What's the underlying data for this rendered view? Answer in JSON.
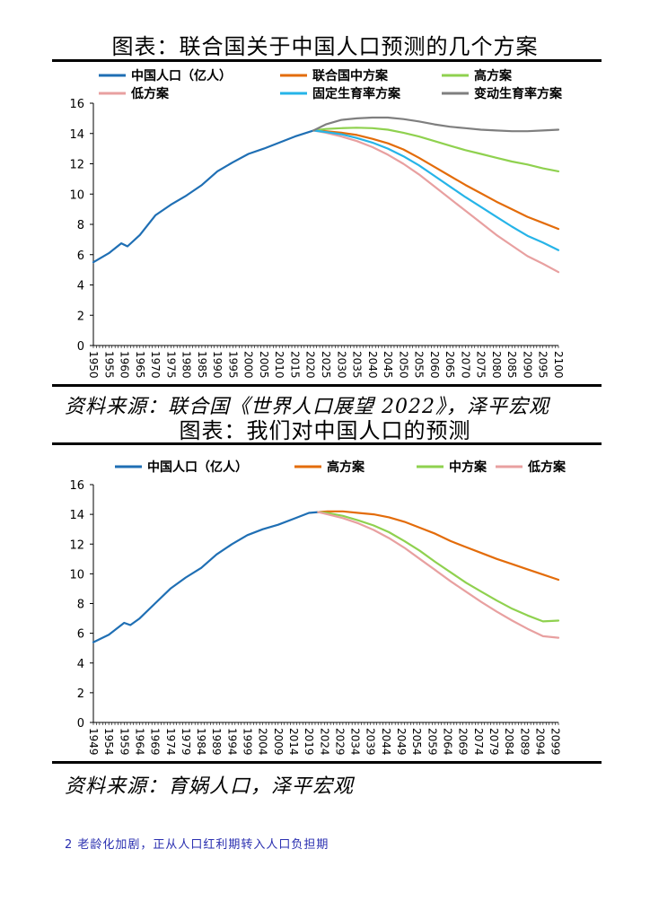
{
  "chart_data": [
    {
      "type": "line",
      "title": "图表：联合国关于中国人口预测的几个方案",
      "source": "资料来源：联合国《世界人口展望 2022》，泽平宏观",
      "ylim": [
        0,
        16
      ],
      "yticks": [
        0,
        2,
        4,
        6,
        8,
        10,
        12,
        14,
        16
      ],
      "x_range": [
        1950,
        2100
      ],
      "x_tick_labels": [
        "1950",
        "1955",
        "1960",
        "1965",
        "1970",
        "1975",
        "1980",
        "1985",
        "1990",
        "1995",
        "2000",
        "2005",
        "2010",
        "2015",
        "2020",
        "2025",
        "2030",
        "2035",
        "2040",
        "2045",
        "2050",
        "2055",
        "2060",
        "2065",
        "2070",
        "2075",
        "2080",
        "2085",
        "2090",
        "2095",
        "2100"
      ],
      "series": [
        {
          "name": "中国人口（亿人）",
          "color": "#1f6fb4",
          "x": [
            1950,
            1955,
            1959,
            1961,
            1965,
            1970,
            1975,
            1980,
            1985,
            1990,
            1995,
            2000,
            2005,
            2010,
            2015,
            2021
          ],
          "y": [
            5.5,
            6.1,
            6.75,
            6.55,
            7.3,
            8.6,
            9.3,
            9.9,
            10.6,
            11.5,
            12.1,
            12.65,
            13.0,
            13.4,
            13.8,
            14.2
          ]
        },
        {
          "name": "联合国中方案",
          "color": "#e36c0a",
          "x": [
            2021,
            2025,
            2030,
            2035,
            2040,
            2045,
            2050,
            2055,
            2060,
            2065,
            2070,
            2075,
            2080,
            2085,
            2090,
            2095,
            2100
          ],
          "y": [
            14.2,
            14.15,
            14.05,
            13.9,
            13.65,
            13.35,
            12.95,
            12.4,
            11.8,
            11.2,
            10.6,
            10.05,
            9.5,
            9.0,
            8.5,
            8.1,
            7.7
          ]
        },
        {
          "name": "高方案",
          "color": "#8fd14f",
          "x": [
            2021,
            2025,
            2030,
            2035,
            2040,
            2045,
            2050,
            2055,
            2060,
            2065,
            2070,
            2075,
            2080,
            2085,
            2090,
            2095,
            2100
          ],
          "y": [
            14.2,
            14.3,
            14.35,
            14.38,
            14.35,
            14.25,
            14.05,
            13.8,
            13.5,
            13.2,
            12.9,
            12.65,
            12.4,
            12.15,
            11.95,
            11.7,
            11.5
          ]
        },
        {
          "name": "低方案",
          "color": "#e8a0a0",
          "x": [
            2021,
            2025,
            2030,
            2035,
            2040,
            2045,
            2050,
            2055,
            2060,
            2065,
            2070,
            2075,
            2080,
            2085,
            2090,
            2095,
            2100
          ],
          "y": [
            14.2,
            14.05,
            13.8,
            13.5,
            13.1,
            12.6,
            12.0,
            11.3,
            10.5,
            9.7,
            8.9,
            8.1,
            7.3,
            6.6,
            5.9,
            5.4,
            4.85
          ]
        },
        {
          "name": "固定生育率方案",
          "color": "#26b4e8",
          "x": [
            2021,
            2025,
            2030,
            2035,
            2040,
            2045,
            2050,
            2055,
            2060,
            2065,
            2070,
            2075,
            2080,
            2085,
            2090,
            2095,
            2100
          ],
          "y": [
            14.2,
            14.1,
            13.95,
            13.7,
            13.4,
            13.0,
            12.5,
            11.9,
            11.2,
            10.5,
            9.8,
            9.15,
            8.5,
            7.85,
            7.25,
            6.8,
            6.3
          ]
        },
        {
          "name": "变动生育率方案",
          "color": "#7f7f7f",
          "x": [
            2021,
            2025,
            2030,
            2035,
            2040,
            2045,
            2050,
            2055,
            2060,
            2065,
            2070,
            2075,
            2080,
            2085,
            2090,
            2095,
            2100
          ],
          "y": [
            14.2,
            14.6,
            14.9,
            15.0,
            15.05,
            15.05,
            14.95,
            14.8,
            14.6,
            14.45,
            14.35,
            14.25,
            14.2,
            14.15,
            14.15,
            14.2,
            14.25
          ]
        }
      ]
    },
    {
      "type": "line",
      "title": "图表：我们对中国人口的预测",
      "source": "资料来源：育娲人口，泽平宏观",
      "ylim": [
        0,
        16
      ],
      "yticks": [
        0,
        2,
        4,
        6,
        8,
        10,
        12,
        14,
        16
      ],
      "x_range": [
        1949,
        2100
      ],
      "x_tick_labels": [
        "1949",
        "1954",
        "1959",
        "1964",
        "1969",
        "1974",
        "1979",
        "1984",
        "1989",
        "1994",
        "1999",
        "2004",
        "2009",
        "2014",
        "2019",
        "2024",
        "2029",
        "2034",
        "2039",
        "2044",
        "2049",
        "2054",
        "2059",
        "2064",
        "2069",
        "2074",
        "2079",
        "2084",
        "2089",
        "2094",
        "2099"
      ],
      "series": [
        {
          "name": "中国人口（亿人）",
          "color": "#1f6fb4",
          "x": [
            1949,
            1954,
            1959,
            1961,
            1964,
            1969,
            1974,
            1979,
            1984,
            1989,
            1994,
            1999,
            2004,
            2009,
            2014,
            2019,
            2022
          ],
          "y": [
            5.4,
            5.9,
            6.7,
            6.55,
            7.0,
            8.0,
            9.0,
            9.75,
            10.4,
            11.3,
            12.0,
            12.6,
            13.0,
            13.3,
            13.7,
            14.1,
            14.15
          ]
        },
        {
          "name": "高方案",
          "color": "#e36c0a",
          "x": [
            2022,
            2025,
            2030,
            2035,
            2040,
            2045,
            2050,
            2055,
            2060,
            2065,
            2070,
            2075,
            2080,
            2085,
            2090,
            2095,
            2100
          ],
          "y": [
            14.15,
            14.2,
            14.2,
            14.1,
            14.0,
            13.8,
            13.5,
            13.1,
            12.7,
            12.2,
            11.8,
            11.4,
            11.0,
            10.65,
            10.3,
            9.95,
            9.6
          ]
        },
        {
          "name": "中方案",
          "color": "#8fd14f",
          "x": [
            2022,
            2025,
            2030,
            2035,
            2040,
            2045,
            2050,
            2055,
            2060,
            2065,
            2070,
            2075,
            2080,
            2085,
            2090,
            2095,
            2100
          ],
          "y": [
            14.15,
            14.1,
            13.9,
            13.6,
            13.25,
            12.8,
            12.2,
            11.55,
            10.8,
            10.1,
            9.4,
            8.8,
            8.2,
            7.65,
            7.2,
            6.8,
            6.85
          ]
        },
        {
          "name": "低方案",
          "color": "#e8a0a0",
          "x": [
            2022,
            2025,
            2030,
            2035,
            2040,
            2045,
            2050,
            2055,
            2060,
            2065,
            2070,
            2075,
            2080,
            2085,
            2090,
            2095,
            2100
          ],
          "y": [
            14.15,
            14.0,
            13.75,
            13.4,
            12.95,
            12.4,
            11.75,
            11.0,
            10.25,
            9.5,
            8.8,
            8.1,
            7.45,
            6.85,
            6.3,
            5.8,
            5.7
          ]
        }
      ]
    }
  ],
  "section_footer": "2 老龄化加剧，正从人口红利期转入人口负担期"
}
